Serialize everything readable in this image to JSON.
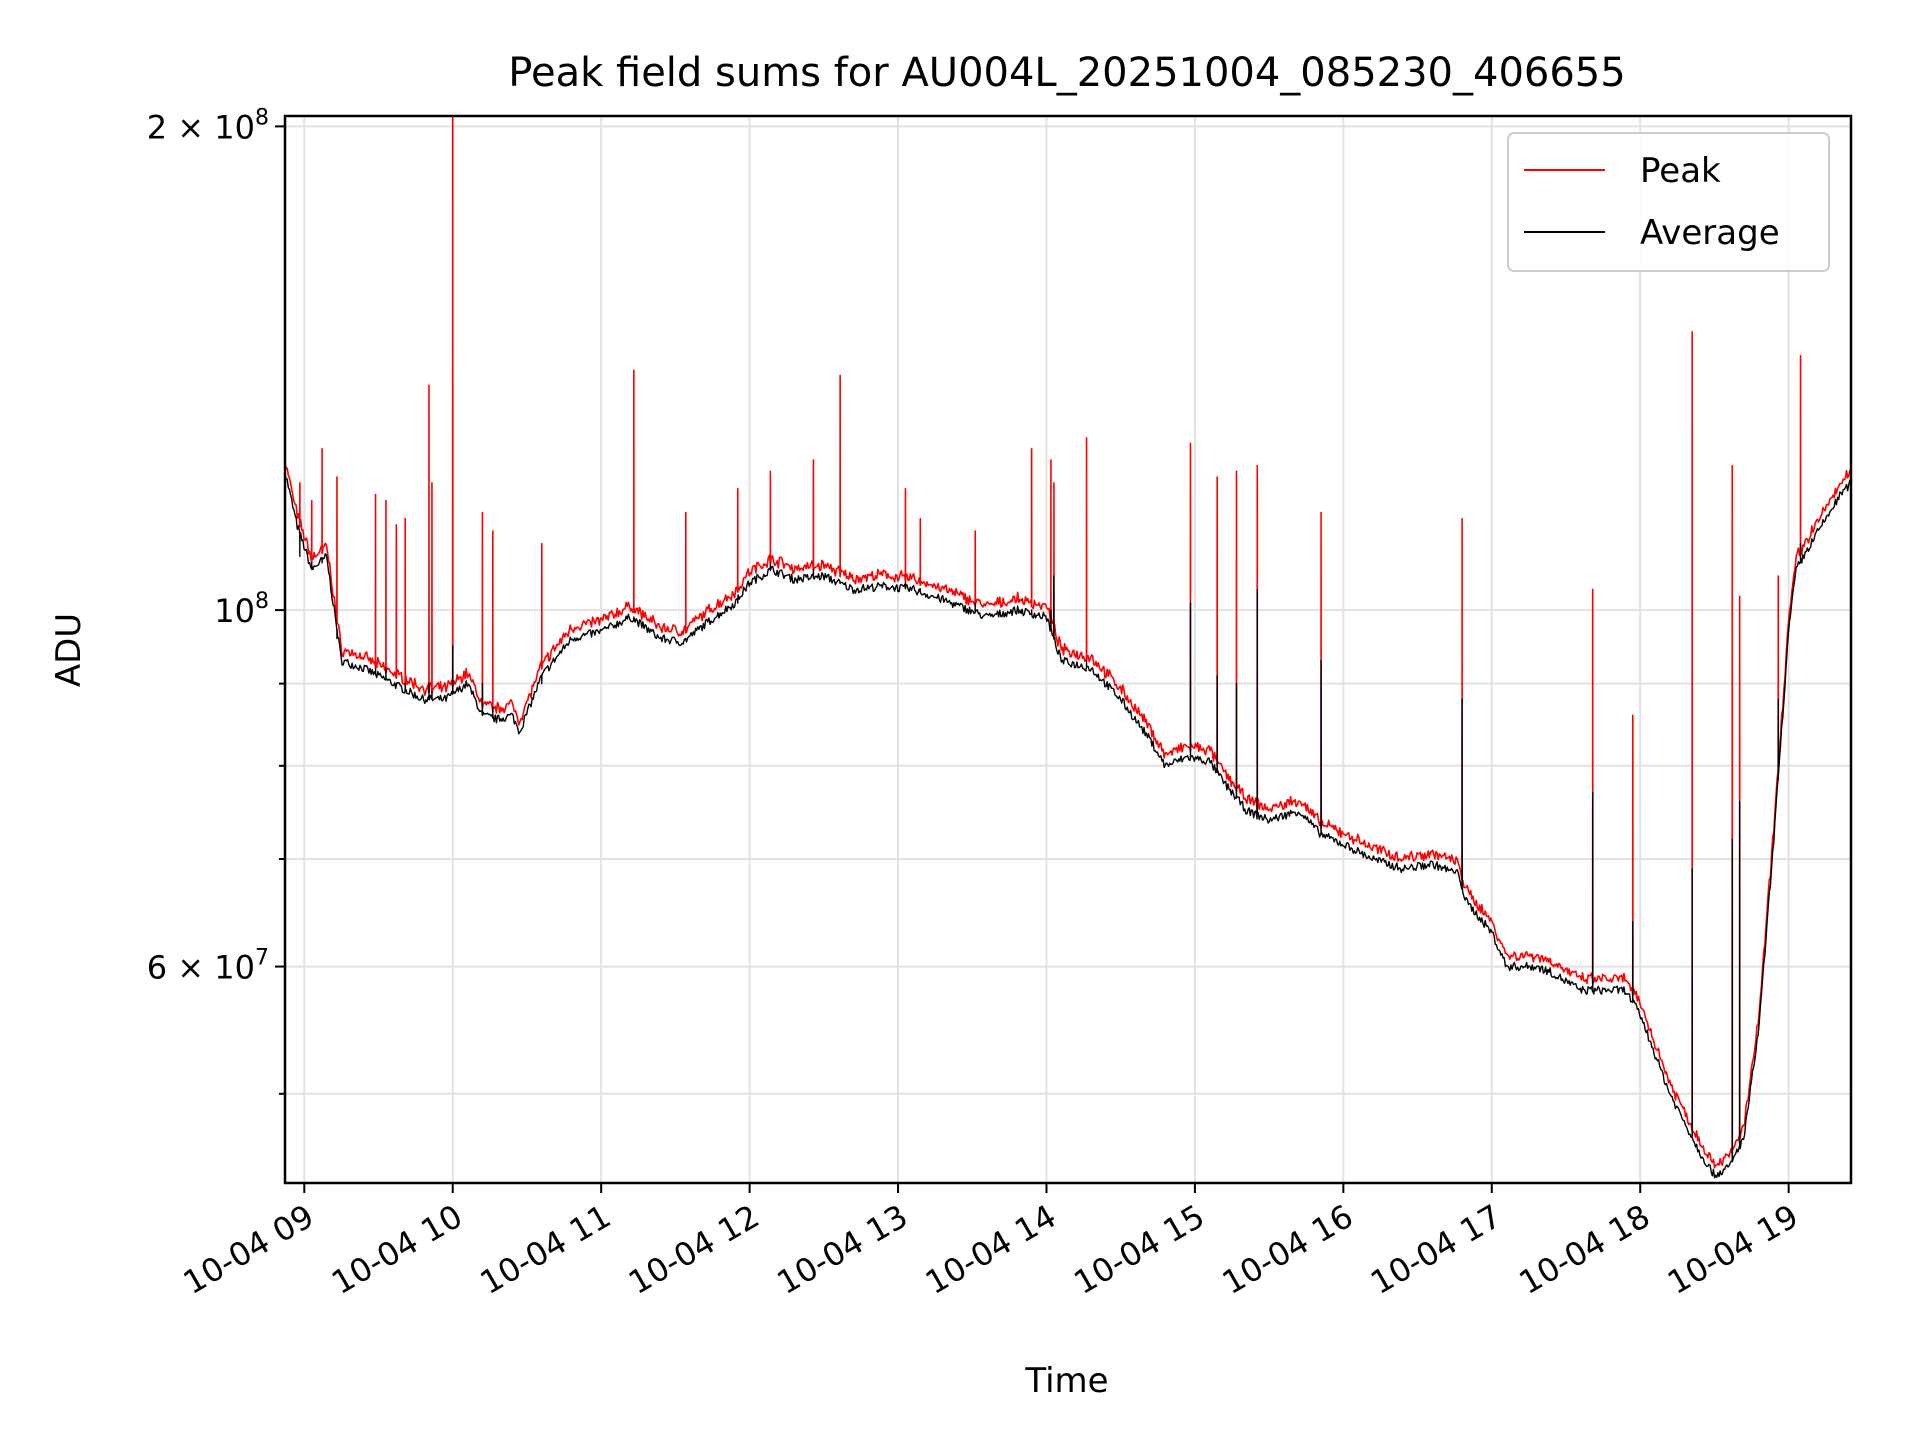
{
  "chart_data": {
    "type": "line",
    "title": "Peak field sums for AU004L_20251004_085230_406655",
    "xlabel": "Time",
    "ylabel": "ADU",
    "yscale": "log",
    "ylim": [
      44000000,
      203000000
    ],
    "xlim_hours": [
      8.87,
      19.42
    ],
    "grid": true,
    "legend_position": "top-right",
    "x_ticks": [
      {
        "hour": 9,
        "label": "10-04 09"
      },
      {
        "hour": 10,
        "label": "10-04 10"
      },
      {
        "hour": 11,
        "label": "10-04 11"
      },
      {
        "hour": 12,
        "label": "10-04 12"
      },
      {
        "hour": 13,
        "label": "10-04 13"
      },
      {
        "hour": 14,
        "label": "10-04 14"
      },
      {
        "hour": 15,
        "label": "10-04 15"
      },
      {
        "hour": 16,
        "label": "10-04 16"
      },
      {
        "hour": 17,
        "label": "10-04 17"
      },
      {
        "hour": 18,
        "label": "10-04 18"
      },
      {
        "hour": 19,
        "label": "10-04 19"
      }
    ],
    "y_major_ticks": [
      {
        "value": 60000000,
        "mantissa": "6",
        "exponent": "7"
      },
      {
        "value": 100000000,
        "mantissa": "",
        "exponent": "8"
      },
      {
        "value": 200000000,
        "mantissa": "2",
        "exponent": "8"
      }
    ],
    "y_minor_ticks": [
      50000000,
      70000000,
      80000000,
      90000000
    ],
    "baseline": {
      "hours": [
        8.87,
        8.95,
        9.05,
        9.15,
        9.25,
        9.4,
        9.6,
        9.8,
        9.95,
        10.1,
        10.2,
        10.3,
        10.4,
        10.45,
        10.6,
        10.8,
        11.0,
        11.2,
        11.4,
        11.55,
        11.7,
        11.9,
        12.0,
        12.15,
        12.3,
        12.5,
        12.7,
        12.9,
        13.1,
        13.3,
        13.6,
        13.8,
        14.0,
        14.1,
        14.3,
        14.5,
        14.7,
        14.8,
        14.95,
        15.1,
        15.2,
        15.35,
        15.5,
        15.7,
        15.85,
        16.0,
        16.2,
        16.4,
        16.6,
        16.78,
        16.82,
        17.0,
        17.1,
        17.3,
        17.4,
        17.6,
        17.9,
        18.0,
        18.2,
        18.4,
        18.5,
        18.6,
        18.7,
        18.8,
        18.9,
        19.0,
        19.05,
        19.2,
        19.35,
        19.42
      ],
      "average": [
        122000000,
        113000000,
        106000000,
        108000000,
        93000000,
        92000000,
        90000000,
        88000000,
        88000000,
        90000000,
        86000000,
        85500000,
        86000000,
        84000000,
        91000000,
        96000000,
        97000000,
        99000000,
        96000000,
        95500000,
        98000000,
        101000000,
        104000000,
        106000000,
        104500000,
        105000000,
        103000000,
        103500000,
        103000000,
        101500000,
        99000000,
        100000000,
        99000000,
        93000000,
        92000000,
        88000000,
        83000000,
        80000000,
        81000000,
        80500000,
        78000000,
        75000000,
        74000000,
        75000000,
        72500000,
        71500000,
        70000000,
        69000000,
        69500000,
        68500000,
        66000000,
        63000000,
        60000000,
        60000000,
        59500000,
        58000000,
        58000000,
        56000000,
        50000000,
        46000000,
        44500000,
        45000000,
        47000000,
        55000000,
        72000000,
        97000000,
        106000000,
        112000000,
        118000000,
        120000000
      ],
      "peak_offset_ratio": 1.012
    },
    "peak_spikes": [
      {
        "hour": 8.97,
        "peak": 120000000,
        "average": 108000000
      },
      {
        "hour": 9.05,
        "peak": 117000000,
        "average": 107000000
      },
      {
        "hour": 9.12,
        "peak": 126000000,
        "average": 107000000
      },
      {
        "hour": 9.22,
        "peak": 121000000,
        "average": 96000000
      },
      {
        "hour": 9.48,
        "peak": 118000000,
        "average": 92000000
      },
      {
        "hour": 9.55,
        "peak": 117000000,
        "average": 92000000
      },
      {
        "hour": 9.62,
        "peak": 113000000,
        "average": 90000000
      },
      {
        "hour": 9.68,
        "peak": 114000000,
        "average": 90000000
      },
      {
        "hour": 9.84,
        "peak": 138000000,
        "average": 90000000
      },
      {
        "hour": 9.86,
        "peak": 120000000,
        "average": 89000000
      },
      {
        "hour": 10.0,
        "peak": 203000000,
        "average": 95000000
      },
      {
        "hour": 10.2,
        "peak": 115000000,
        "average": 90000000
      },
      {
        "hour": 10.27,
        "peak": 112000000,
        "average": 87000000
      },
      {
        "hour": 10.6,
        "peak": 110000000,
        "average": 90000000
      },
      {
        "hour": 11.22,
        "peak": 141000000,
        "average": 99000000
      },
      {
        "hour": 11.57,
        "peak": 115000000,
        "average": 96000000
      },
      {
        "hour": 11.92,
        "peak": 119000000,
        "average": 101000000
      },
      {
        "hour": 12.14,
        "peak": 122000000,
        "average": 107000000
      },
      {
        "hour": 12.43,
        "peak": 124000000,
        "average": 106000000
      },
      {
        "hour": 12.61,
        "peak": 140000000,
        "average": 104000000
      },
      {
        "hour": 13.05,
        "peak": 119000000,
        "average": 104000000
      },
      {
        "hour": 13.15,
        "peak": 114000000,
        "average": 103000000
      },
      {
        "hour": 13.52,
        "peak": 112000000,
        "average": 101000000
      },
      {
        "hour": 13.9,
        "peak": 126000000,
        "average": 100000000
      },
      {
        "hour": 14.03,
        "peak": 124000000,
        "average": 100000000
      },
      {
        "hour": 14.05,
        "peak": 120000000,
        "average": 105000000
      },
      {
        "hour": 14.27,
        "peak": 128000000,
        "average": 93000000
      },
      {
        "hour": 14.97,
        "peak": 127000000,
        "average": 101000000
      },
      {
        "hour": 15.15,
        "peak": 121000000,
        "average": 91000000
      },
      {
        "hour": 15.28,
        "peak": 122000000,
        "average": 90000000
      },
      {
        "hour": 15.42,
        "peak": 123000000,
        "average": 103000000
      },
      {
        "hour": 15.85,
        "peak": 115000000,
        "average": 93000000
      },
      {
        "hour": 16.8,
        "peak": 114000000,
        "average": 88000000
      },
      {
        "hour": 17.68,
        "peak": 103000000,
        "average": 77000000
      },
      {
        "hour": 17.95,
        "peak": 86000000,
        "average": 64000000
      },
      {
        "hour": 18.35,
        "peak": 149000000,
        "average": 69000000
      },
      {
        "hour": 18.62,
        "peak": 123000000,
        "average": 72000000
      },
      {
        "hour": 18.67,
        "peak": 102000000,
        "average": 76000000
      },
      {
        "hour": 18.93,
        "peak": 105000000,
        "average": 88000000
      },
      {
        "hour": 19.08,
        "peak": 144000000,
        "average": 110000000
      }
    ],
    "series": [
      {
        "name": "Peak",
        "color": "#ff0000"
      },
      {
        "name": "Average",
        "color": "#000000"
      }
    ]
  }
}
